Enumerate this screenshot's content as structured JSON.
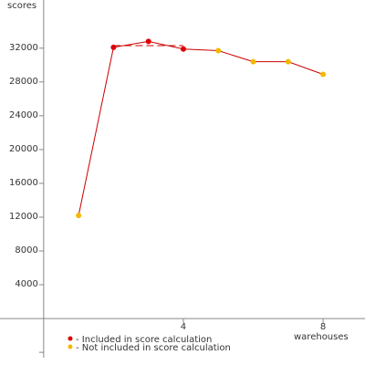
{
  "chart_data": {
    "type": "line",
    "y_label": "scores",
    "x_label": "warehouses",
    "x": [
      1,
      2,
      3,
      4,
      5,
      6,
      7,
      8
    ],
    "values": [
      12200,
      32100,
      32800,
      31900,
      31700,
      30400,
      30400,
      28900
    ],
    "included": [
      false,
      true,
      true,
      true,
      false,
      false,
      false,
      false
    ],
    "line_color": "#cc0000",
    "legend": [
      {
        "label": "- Included in score calculation",
        "color": "#dd0000"
      },
      {
        "label": "- Not included in score calculation",
        "color": "#f5b800"
      }
    ],
    "score_line": {
      "value": 32300,
      "x": [
        2,
        4
      ]
    },
    "xlim": [
      -1.25,
      9.2
    ],
    "ylim": [
      -5500,
      37700
    ],
    "xticks": [
      4,
      8
    ],
    "yticks": [
      4000,
      8000,
      12000,
      16000,
      20000,
      24000,
      28000,
      32000
    ],
    "minor_yticks": [
      -4000
    ]
  }
}
